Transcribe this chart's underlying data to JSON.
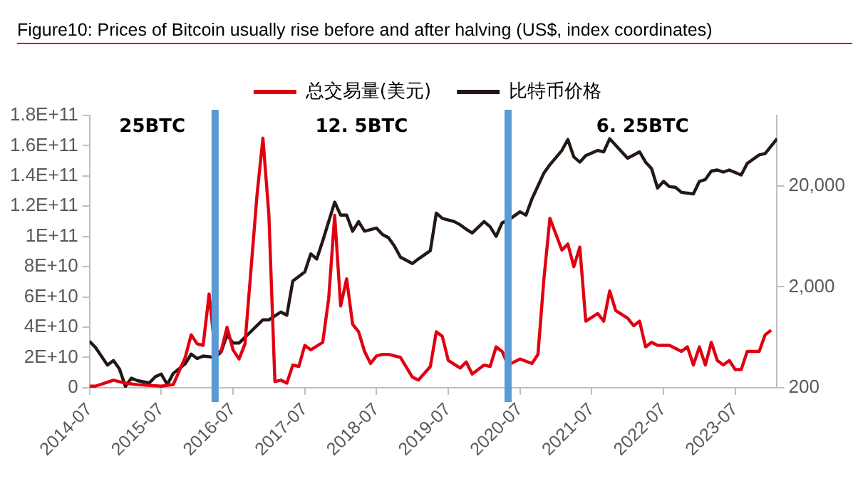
{
  "chart_data": {
    "type": "line",
    "title": "Figure10: Prices of Bitcoin usually rise before and after halving (US$, index coordinates)",
    "xlim": [
      "2014-07",
      "2024-02"
    ],
    "xticks": [
      "2014-07",
      "2015-07",
      "2016-07",
      "2017-07",
      "2018-07",
      "2019-07",
      "2020-07",
      "2021-07",
      "2022-07",
      "2023-07"
    ],
    "ylim": [
      0,
      180000000000
    ],
    "yticks": [
      {
        "value": 0,
        "label": "0"
      },
      {
        "value": 20000000000,
        "label": "2E+10"
      },
      {
        "value": 40000000000,
        "label": "4E+10"
      },
      {
        "value": 60000000000,
        "label": "6E+10"
      },
      {
        "value": 80000000000,
        "label": "8E+10"
      },
      {
        "value": 100000000000,
        "label": "1E+11"
      },
      {
        "value": 120000000000,
        "label": "1.2E+11"
      },
      {
        "value": 140000000000,
        "label": "1.4E+11"
      },
      {
        "value": 160000000000,
        "label": "1.6E+11"
      },
      {
        "value": 180000000000,
        "label": "1.8E+11"
      }
    ],
    "y2lim": [
      200,
      100000
    ],
    "y2ticks": [
      200,
      {
        "value": 2000,
        "label": "2,000"
      },
      {
        "value": 20000,
        "label": "20,000"
      }
    ],
    "log": "y2",
    "grid": false,
    "legend": "top",
    "marker": "none",
    "line_style": "solid",
    "ref_lines": [
      {
        "axis": "x",
        "value": "2016-04",
        "color": "#5b9bd5"
      },
      {
        "axis": "x",
        "value": "2020-05",
        "color": "#5b9bd5"
      }
    ],
    "annotations": [
      "25BTC",
      "12. 5BTC",
      "6. 25BTC"
    ],
    "series": [
      {
        "name": "总交易量(美元)",
        "color": "#e00011",
        "x": [
          "2014-07",
          "2014-08",
          "2014-11",
          "2015-01",
          "2015-03",
          "2015-07",
          "2015-09",
          "2015-11",
          "2015-12",
          "2016-01",
          "2016-02",
          "2016-03",
          "2016-04",
          "2016-05",
          "2016-06",
          "2016-07",
          "2016-08",
          "2016-09",
          "2016-11",
          "2016-12",
          "2017-01",
          "2017-02",
          "2017-03",
          "2017-04",
          "2017-05",
          "2017-06",
          "2017-07",
          "2017-08",
          "2017-10",
          "2017-11",
          "2017-12",
          "2018-01",
          "2018-02",
          "2018-03",
          "2018-04",
          "2018-05",
          "2018-06",
          "2018-07",
          "2018-08",
          "2018-09",
          "2018-11",
          "2019-01",
          "2019-02",
          "2019-04",
          "2019-05",
          "2019-06",
          "2019-07",
          "2019-09",
          "2019-10",
          "2019-11",
          "2020-01",
          "2020-02",
          "2020-03",
          "2020-04",
          "2020-05",
          "2020-07",
          "2020-09",
          "2020-10",
          "2020-11",
          "2020-12",
          "2021-02",
          "2021-03",
          "2021-04",
          "2021-05",
          "2021-06",
          "2021-08",
          "2021-09",
          "2021-10",
          "2021-11",
          "2022-01",
          "2022-02",
          "2022-03",
          "2022-04",
          "2022-05",
          "2022-06",
          "2022-08",
          "2022-10",
          "2022-11",
          "2022-12",
          "2023-01",
          "2023-02",
          "2023-03",
          "2023-04",
          "2023-05",
          "2023-06",
          "2023-07",
          "2023-08",
          "2023-09",
          "2023-11",
          "2023-12",
          "2024-01"
        ],
        "values": [
          1000000000,
          1000000000,
          5000000000,
          3000000000,
          2000000000,
          1000000000,
          2000000000,
          20000000000,
          35000000000,
          29000000000,
          28000000000,
          62000000000,
          24000000000,
          24000000000,
          40000000000,
          25000000000,
          19000000000,
          29000000000,
          127000000000,
          165000000000,
          114000000000,
          4000000000,
          5000000000,
          3000000000,
          15000000000,
          14000000000,
          28000000000,
          25000000000,
          30000000000,
          59000000000,
          114000000000,
          54000000000,
          72000000000,
          42000000000,
          37000000000,
          24000000000,
          16000000000,
          21000000000,
          22000000000,
          22000000000,
          20000000000,
          7000000000,
          5000000000,
          14000000000,
          37000000000,
          34000000000,
          18000000000,
          13000000000,
          17000000000,
          9000000000,
          15000000000,
          14000000000,
          27000000000,
          24000000000,
          15000000000,
          19000000000,
          16000000000,
          22000000000,
          72000000000,
          112000000000,
          91000000000,
          95000000000,
          80000000000,
          93000000000,
          44000000000,
          49000000000,
          44000000000,
          64000000000,
          51000000000,
          46000000000,
          41000000000,
          44000000000,
          27000000000,
          30000000000,
          28000000000,
          28000000000,
          24000000000,
          27000000000,
          15000000000,
          27000000000,
          15000000000,
          30000000000,
          18000000000,
          15000000000,
          18000000000,
          12000000000,
          12000000000,
          24000000000,
          24000000000,
          35000000000,
          38000000000
        ]
      },
      {
        "name": "比特币价格",
        "color": "#231815",
        "axis": "y2",
        "x": [
          "2014-07",
          "2014-08",
          "2014-10",
          "2014-11",
          "2014-12",
          "2015-01",
          "2015-02",
          "2015-03",
          "2015-05",
          "2015-06",
          "2015-07",
          "2015-08",
          "2015-09",
          "2015-11",
          "2015-12",
          "2016-01",
          "2016-02",
          "2016-04",
          "2016-05",
          "2016-06",
          "2016-07",
          "2016-08",
          "2016-10",
          "2016-12",
          "2017-01",
          "2017-03",
          "2017-04",
          "2017-05",
          "2017-07",
          "2017-08",
          "2017-09",
          "2017-10",
          "2017-12",
          "2018-01",
          "2018-02",
          "2018-03",
          "2018-04",
          "2018-05",
          "2018-07",
          "2018-08",
          "2018-09",
          "2018-10",
          "2018-11",
          "2019-01",
          "2019-02",
          "2019-04",
          "2019-05",
          "2019-06",
          "2019-08",
          "2019-09",
          "2019-10",
          "2019-11",
          "2020-01",
          "2020-02",
          "2020-03",
          "2020-04",
          "2020-05",
          "2020-07",
          "2020-08",
          "2020-09",
          "2020-11",
          "2020-12",
          "2021-02",
          "2021-03",
          "2021-04",
          "2021-05",
          "2021-06",
          "2021-08",
          "2021-09",
          "2021-10",
          "2021-11",
          "2022-01",
          "2022-03",
          "2022-04",
          "2022-05",
          "2022-06",
          "2022-07",
          "2022-08",
          "2022-09",
          "2022-10",
          "2022-12",
          "2023-01",
          "2023-02",
          "2023-03",
          "2023-04",
          "2023-05",
          "2023-06",
          "2023-08",
          "2023-09",
          "2023-11",
          "2023-12",
          "2024-02"
        ],
        "values": [
          578,
          500,
          335,
          372,
          307,
          206,
          249,
          235,
          223,
          257,
          273,
          215,
          277,
          345,
          431,
          389,
          412,
          400,
          451,
          671,
          554,
          554,
          722,
          942,
          942,
          1125,
          1046,
          2285,
          2807,
          4245,
          3775,
          5700,
          13840,
          10280,
          10280,
          7120,
          8870,
          7120,
          7660,
          6610,
          6140,
          5070,
          3940,
          3400,
          3775,
          4570,
          10770,
          9550,
          8870,
          8240,
          7450,
          6830,
          8870,
          7890,
          6320,
          8620,
          9130,
          11090,
          10280,
          14900,
          26900,
          32500,
          45000,
          57800,
          38800,
          34500,
          40000,
          45000,
          43600,
          58800,
          50700,
          37700,
          43600,
          34500,
          29800,
          19100,
          22200,
          19700,
          19400,
          17300,
          16700,
          22200,
          23200,
          28100,
          28800,
          27500,
          28800,
          25700,
          33500,
          40600,
          42000,
          58800
        ]
      }
    ]
  }
}
